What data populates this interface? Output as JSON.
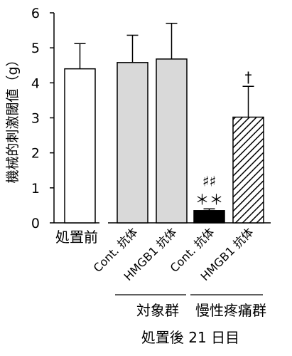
{
  "chart_data": {
    "type": "bar",
    "ylabel": "機械的刺激閾値（g）",
    "ylim": [
      0,
      6
    ],
    "yticks": [
      0,
      1,
      2,
      3,
      4,
      5,
      6
    ],
    "bars": [
      {
        "label": "処置前",
        "value": 4.4,
        "error": 0.72,
        "fill": "white",
        "annotations": []
      },
      {
        "label": "Cont. 抗体",
        "value": 4.58,
        "error": 0.78,
        "fill": "lightgray",
        "annotations": []
      },
      {
        "label": "HMGB1 抗体",
        "value": 4.68,
        "error": 1.02,
        "fill": "lightgray",
        "annotations": []
      },
      {
        "label": "Cont. 抗体",
        "value": 0.35,
        "error": 0.05,
        "fill": "black",
        "annotations": [
          "＊＊",
          "♯♯"
        ]
      },
      {
        "label": "HMGB1 抗体",
        "value": 3.02,
        "error": 0.88,
        "fill": "hatched",
        "annotations": [
          "†"
        ]
      }
    ],
    "groups": [
      {
        "label": "対象群",
        "bars": [
          1,
          2
        ]
      },
      {
        "label": "慢性疼痛群",
        "bars": [
          3,
          4
        ]
      }
    ],
    "xlabel": "処置後 21 日目",
    "colors": {
      "white": "#ffffff",
      "lightgray": "#d9d9d9",
      "black": "#000000"
    }
  }
}
